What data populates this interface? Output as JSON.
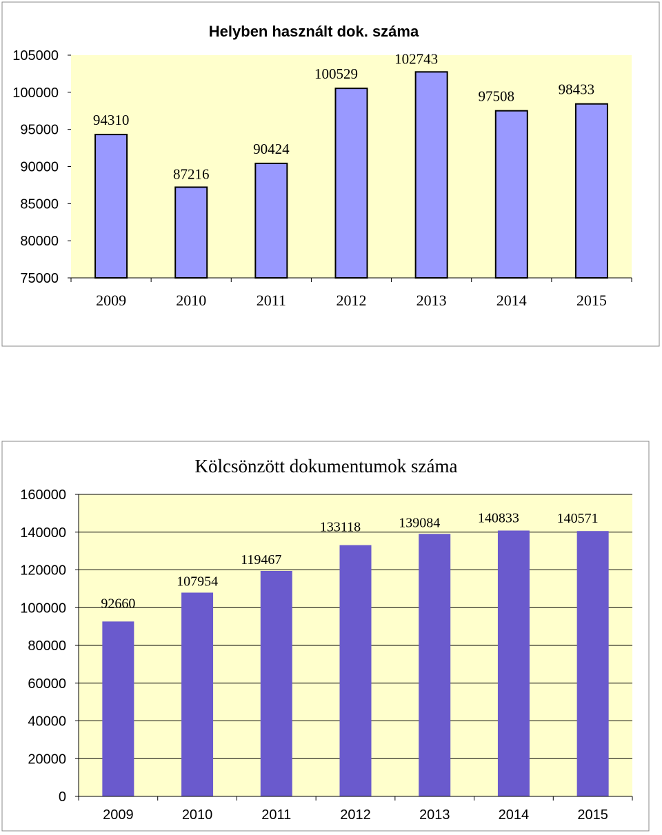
{
  "colors": {
    "plot_bg": "#ffffcc",
    "chart1_bar": "#9999ff",
    "chart2_bar": "#6a5acd",
    "bar_outline": "#000000",
    "gridline": "#000000",
    "frame": "#888888"
  },
  "chart_data": [
    {
      "type": "bar",
      "title": "Helyben használt dok. száma",
      "categories": [
        "2009",
        "2010",
        "2011",
        "2012",
        "2013",
        "2014",
        "2015"
      ],
      "values": [
        94310,
        87216,
        90424,
        100529,
        102743,
        97508,
        98433
      ],
      "data_labels": [
        "94310",
        "87216",
        "90424",
        "100529",
        "102743",
        "97508",
        "98433"
      ],
      "ylim": [
        75000,
        105000
      ],
      "y_ticks": [
        75000,
        80000,
        85000,
        90000,
        95000,
        100000,
        105000
      ],
      "y_tick_labels": [
        "75000",
        "80000",
        "85000",
        "90000",
        "95000",
        "100000",
        "105000"
      ],
      "grid": false,
      "xlabel": "",
      "ylabel": ""
    },
    {
      "type": "bar",
      "title": "Kölcsönzött dokumentumok száma",
      "categories": [
        "2009",
        "2010",
        "2011",
        "2012",
        "2013",
        "2014",
        "2015"
      ],
      "values": [
        92660,
        107954,
        119467,
        133118,
        139084,
        140833,
        140571
      ],
      "data_labels": [
        "92660",
        "107954",
        "119467",
        "133118",
        "139084",
        "140833",
        "140571"
      ],
      "ylim": [
        0,
        160000
      ],
      "y_ticks": [
        0,
        20000,
        40000,
        60000,
        80000,
        100000,
        120000,
        140000,
        160000
      ],
      "y_tick_labels": [
        "0",
        "20000",
        "40000",
        "60000",
        "80000",
        "100000",
        "120000",
        "140000",
        "160000"
      ],
      "grid": true,
      "xlabel": "",
      "ylabel": ""
    }
  ]
}
